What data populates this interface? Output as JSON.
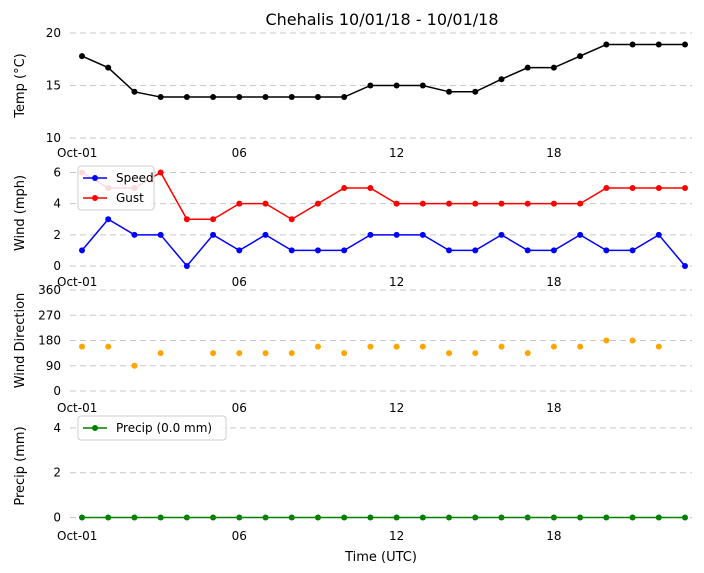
{
  "title": "Chehalis 10/01/18 - 10/01/18",
  "xlabel": "Time (UTC)",
  "x_hours": [
    0,
    1,
    2,
    3,
    4,
    5,
    6,
    7,
    8,
    9,
    10,
    11,
    12,
    13,
    14,
    15,
    16,
    17,
    18,
    19,
    20,
    21,
    22,
    23
  ],
  "x_ticks": [
    {
      "hour": 0,
      "label": "Oct-01"
    },
    {
      "hour": 6,
      "label": "06"
    },
    {
      "hour": 12,
      "label": "12"
    },
    {
      "hour": 18,
      "label": "18"
    }
  ],
  "colors": {
    "temp": "#000000",
    "speed": "#0000ff",
    "gust": "#ff0000",
    "direction": "#ffa500",
    "precip": "#008000"
  },
  "chart_data": [
    {
      "type": "line",
      "ylabel": "Temp ($^\\circ$C)",
      "ylabel_display": "Temp (°C)",
      "ylim": [
        10,
        20
      ],
      "yticks": [
        10,
        15,
        20
      ],
      "series": [
        {
          "key": "temp",
          "values": [
            17.8,
            16.7,
            14.4,
            13.9,
            13.9,
            13.9,
            13.9,
            13.9,
            13.9,
            13.9,
            13.9,
            15.0,
            15.0,
            15.0,
            14.4,
            14.4,
            15.6,
            16.7,
            16.7,
            17.8,
            18.9,
            18.9,
            18.9,
            18.9
          ]
        }
      ]
    },
    {
      "type": "line",
      "ylabel": "Wind (mph)",
      "ylim": [
        0,
        6.8
      ],
      "yticks": [
        0,
        2,
        4,
        6
      ],
      "legend": "top-left",
      "series": [
        {
          "key": "speed",
          "name": "Speed",
          "values": [
            1,
            3,
            2,
            2,
            0,
            2,
            1,
            2,
            1,
            1,
            1,
            2,
            2,
            2,
            1,
            1,
            2,
            1,
            1,
            2,
            1,
            1,
            2,
            0
          ]
        },
        {
          "key": "gust",
          "name": "Gust",
          "values": [
            6,
            5,
            5,
            6,
            3,
            3,
            4,
            4,
            3,
            4,
            5,
            5,
            4,
            4,
            4,
            4,
            4,
            4,
            4,
            4,
            5,
            5,
            5,
            5
          ]
        }
      ]
    },
    {
      "type": "scatter",
      "ylabel": "Wind Direction",
      "ylim": [
        0,
        360
      ],
      "yticks": [
        0,
        90,
        180,
        270,
        360
      ],
      "series": [
        {
          "key": "direction",
          "values": [
            158,
            158,
            90,
            135,
            null,
            135,
            135,
            135,
            135,
            158,
            135,
            158,
            158,
            158,
            135,
            135,
            158,
            135,
            158,
            158,
            180,
            180,
            158,
            null
          ]
        }
      ]
    },
    {
      "type": "line",
      "ylabel": "Precip (mm)",
      "ylim": [
        -0.2,
        4.8
      ],
      "yticks": [
        0,
        2,
        4
      ],
      "legend": "top-left",
      "series": [
        {
          "key": "precip",
          "name": "Precip (0.0 mm)",
          "values": [
            0,
            0,
            0,
            0,
            0,
            0,
            0,
            0,
            0,
            0,
            0,
            0,
            0,
            0,
            0,
            0,
            0,
            0,
            0,
            0,
            0,
            0,
            0,
            0
          ]
        }
      ]
    }
  ]
}
